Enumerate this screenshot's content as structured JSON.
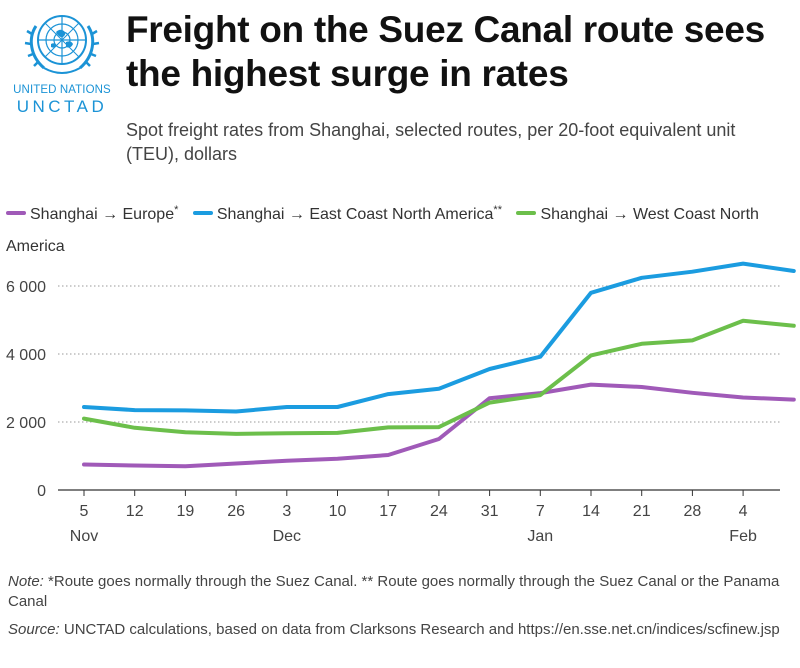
{
  "header": {
    "logo_org": "UNITED NATIONS",
    "logo_abbr": "UNCTAD",
    "title": "Freight on the Suez Canal route sees the highest surge in rates",
    "subtitle": "Spot freight rates from Shanghai, selected routes, per 20-foot equivalent unit (TEU), dollars"
  },
  "legend": [
    {
      "label": "Shanghai → Europe",
      "mark": "*",
      "color": "#a05ab8"
    },
    {
      "label": "Shanghai → East Coast North America",
      "mark": "**",
      "color": "#1b9ce0"
    },
    {
      "label": "Shanghai → West Coast North America",
      "mark": "",
      "color": "#6cbf4b"
    }
  ],
  "chart_data": {
    "type": "line",
    "title": "Freight on the Suez Canal route sees the highest surge in rates",
    "subtitle": "Spot freight rates from Shanghai, selected routes, per 20-foot equivalent unit (TEU), dollars",
    "xlabel": "",
    "ylabel": "",
    "x": [
      "5",
      "12",
      "19",
      "26",
      "3",
      "10",
      "17",
      "24",
      "31",
      "7",
      "14",
      "21",
      "28",
      "4",
      "11"
    ],
    "x_tick_labels": [
      "5",
      "12",
      "19",
      "26",
      "3",
      "10",
      "17",
      "24",
      "31",
      "7",
      "14",
      "21",
      "28",
      "4"
    ],
    "month_labels": [
      {
        "label": "Nov",
        "at": "5"
      },
      {
        "label": "Dec",
        "at": "3"
      },
      {
        "label": "Jan",
        "at": "7"
      },
      {
        "label": "Feb",
        "at": "4"
      }
    ],
    "y_ticks": [
      0,
      2000,
      4000,
      6000
    ],
    "y_tick_labels": [
      "0",
      "2 000",
      "4 000",
      "6 000"
    ],
    "ylim": [
      0,
      7000
    ],
    "grid": "horizontal dotted",
    "legend_position": "top",
    "series": [
      {
        "name": "Shanghai → Europe",
        "color": "#a05ab8",
        "values": [
          750,
          720,
          700,
          780,
          860,
          920,
          1030,
          1500,
          2700,
          2850,
          3100,
          3030,
          2860,
          2720,
          2660
        ]
      },
      {
        "name": "Shanghai → East Coast North America",
        "color": "#1b9ce0",
        "values": [
          2440,
          2350,
          2340,
          2310,
          2440,
          2440,
          2820,
          2980,
          3560,
          3920,
          5800,
          6240,
          6420,
          6660,
          6440
        ]
      },
      {
        "name": "Shanghai → West Coast North America",
        "color": "#6cbf4b",
        "values": [
          2100,
          1830,
          1700,
          1650,
          1670,
          1680,
          1840,
          1850,
          2570,
          2790,
          3960,
          4300,
          4400,
          4980,
          4830
        ]
      }
    ]
  },
  "footer": {
    "note_label": "Note:",
    "note_text": " *Route goes normally through the Suez Canal. ** Route goes normally through the Suez Canal or the Panama Canal",
    "source_label": "Source:",
    "source_text": " UNCTAD calculations, based on data from Clarksons Research and https://en.sse.net.cn/indices/scfinew.jsp"
  }
}
